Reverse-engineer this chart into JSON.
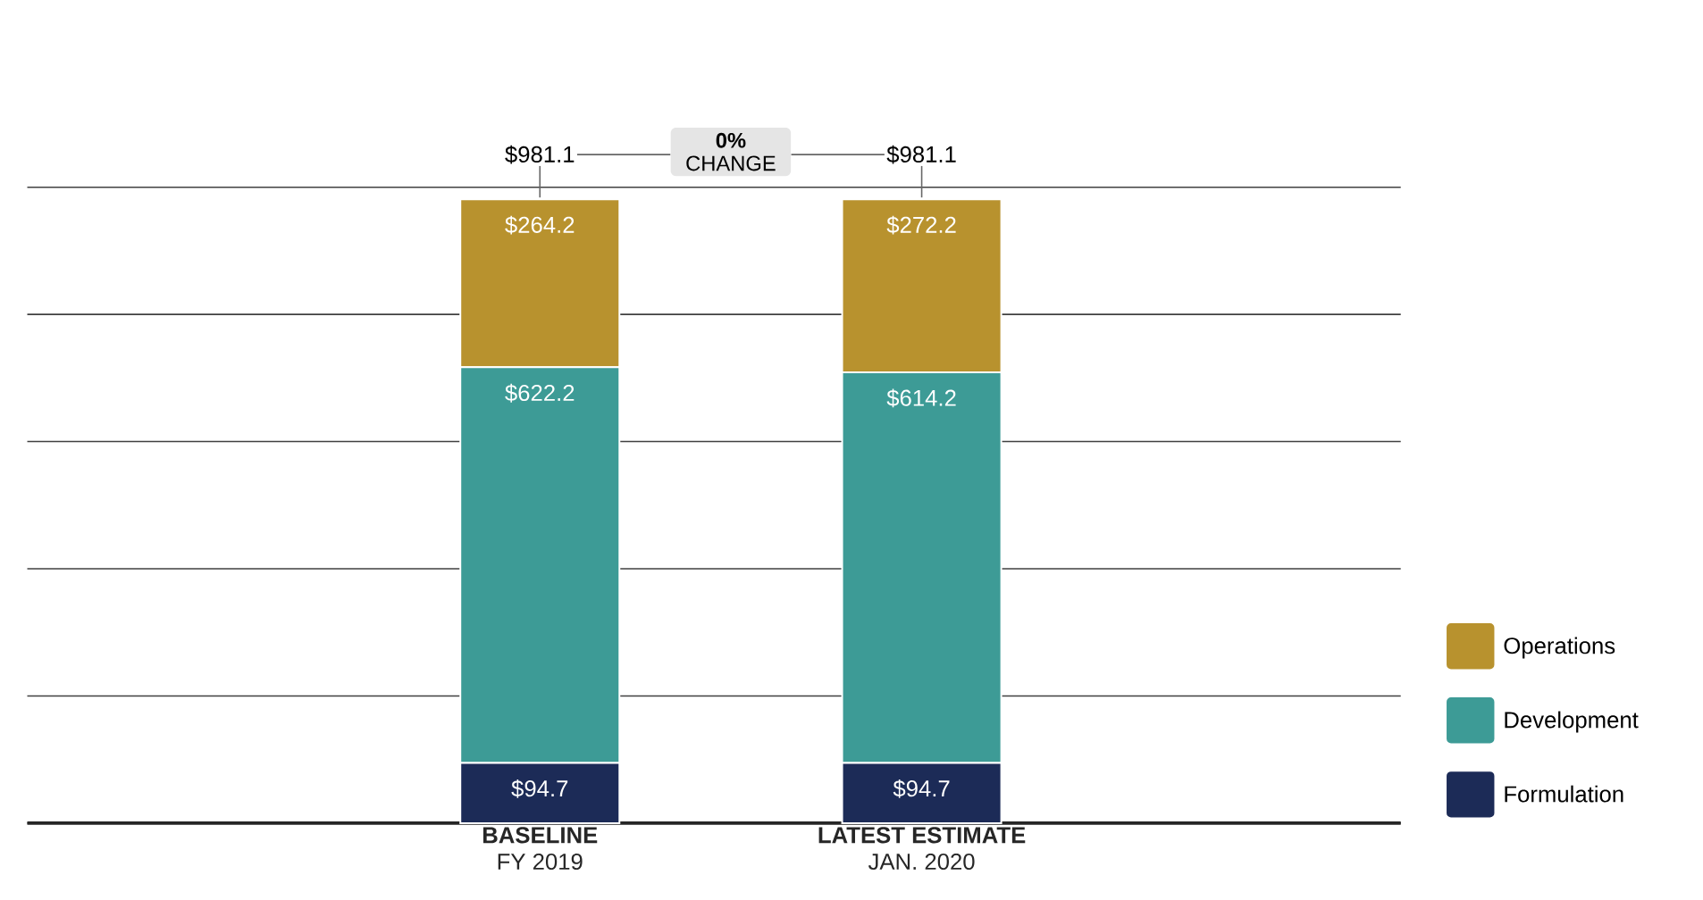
{
  "chart_data": {
    "type": "bar",
    "stacked": true,
    "categories": [
      "**BASELINE**\nFY 2019",
      "**LATEST ESTIMATE**\nJAN. 2020"
    ],
    "series": [
      {
        "name": "Formulation",
        "color": "#1c2b57",
        "values": [
          94.7,
          94.7
        ],
        "value_labels": [
          "$94.7",
          "$94.7"
        ]
      },
      {
        "name": "Development",
        "color": "#3d9b96",
        "values": [
          622.2,
          614.2
        ],
        "value_labels": [
          "$622.2",
          "$614.2"
        ]
      },
      {
        "name": "Operations",
        "color": "#b8922e",
        "values": [
          264.2,
          272.2
        ],
        "value_labels": [
          "$264.2",
          "$272.2"
        ]
      }
    ],
    "totals": [
      "$981.1",
      "$981.1"
    ],
    "annotations": [
      "**0%**\nCHANGE"
    ],
    "ylim": [
      0,
      1000
    ],
    "yticks": [
      {
        "value": 0,
        "label": null
      },
      {
        "value": 200,
        "label": null
      },
      {
        "value": 400,
        "label": null
      },
      {
        "value": 600,
        "label": null
      },
      {
        "value": 800,
        "label": null
      },
      {
        "value": 1000,
        "label": null
      }
    ],
    "grid": "y",
    "tick_labels": "x",
    "legend": "bottom right"
  }
}
